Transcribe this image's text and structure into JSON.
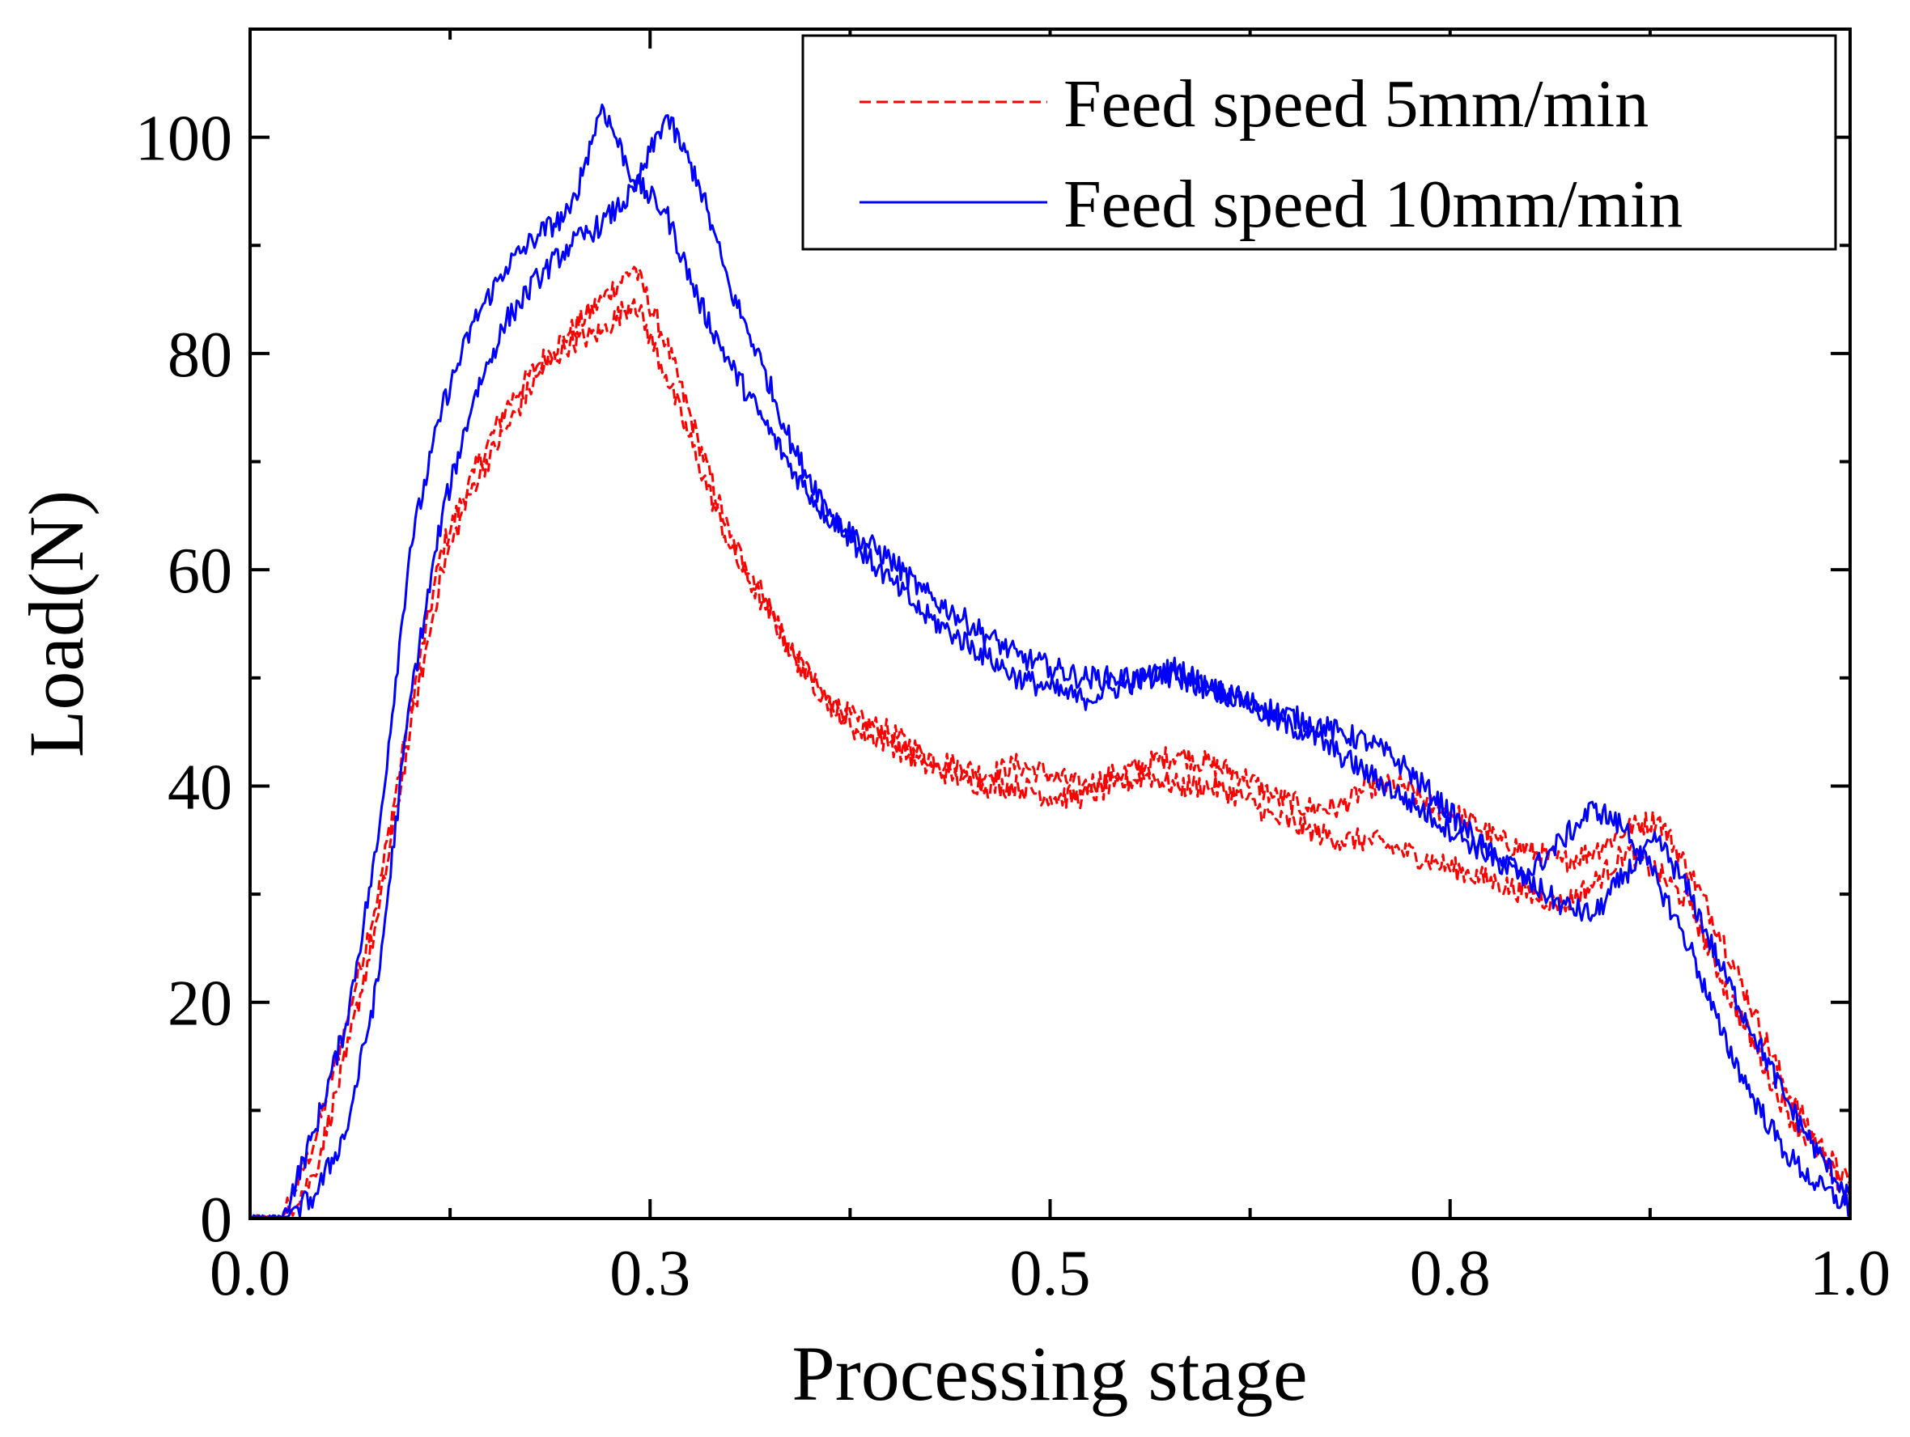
{
  "chart_data": {
    "type": "line",
    "title": "",
    "xlabel": "Processing stage",
    "ylabel": "Load(N)",
    "xlim": [
      0.0,
      1.0
    ],
    "ylim": [
      0,
      110
    ],
    "grid": false,
    "legend_position": "top-right",
    "x_ticks": [
      {
        "value": 0.0,
        "label": "0.0"
      },
      {
        "value": 0.25,
        "label": "0.3"
      },
      {
        "value": 0.5,
        "label": "0.5"
      },
      {
        "value": 0.75,
        "label": "0.8"
      },
      {
        "value": 1.0,
        "label": "1.0"
      }
    ],
    "y_ticks": [
      {
        "value": 0,
        "label": "0"
      },
      {
        "value": 20,
        "label": "20"
      },
      {
        "value": 40,
        "label": "40"
      },
      {
        "value": 60,
        "label": "60"
      },
      {
        "value": 80,
        "label": "80"
      },
      {
        "value": 100,
        "label": "100"
      }
    ],
    "series": [
      {
        "name": "Feed speed 5mm/min",
        "color": "#ff0000",
        "dash": "dashed",
        "curves": [
          {
            "x": [
              0.0,
              0.02,
              0.04,
              0.06,
              0.08,
              0.1,
              0.12,
              0.14,
              0.16,
              0.18,
              0.2,
              0.22,
              0.24,
              0.26,
              0.28,
              0.3,
              0.32,
              0.34,
              0.36,
              0.38,
              0.4,
              0.42,
              0.44,
              0.46,
              0.48,
              0.5,
              0.52,
              0.54,
              0.56,
              0.58,
              0.6,
              0.62,
              0.64,
              0.66,
              0.68,
              0.7,
              0.72,
              0.74,
              0.76,
              0.78,
              0.8,
              0.82,
              0.84,
              0.86,
              0.88,
              0.9,
              0.92,
              0.94,
              0.96,
              0.98,
              1.0
            ],
            "y": [
              0,
              0,
              7,
              18,
              30,
              47,
              62,
              69,
              75,
              79,
              82,
              85,
              88,
              81,
              72,
              63,
              58,
              52,
              48,
              46,
              45,
              43,
              42,
              41,
              42,
              41,
              40,
              41,
              42,
              43,
              42,
              41,
              39,
              38,
              38,
              40,
              40,
              38,
              37,
              35,
              34,
              33,
              34,
              36,
              37,
              32,
              26,
              19,
              12,
              7,
              3
            ]
          },
          {
            "x": [
              0.0,
              0.02,
              0.04,
              0.06,
              0.08,
              0.1,
              0.12,
              0.14,
              0.16,
              0.18,
              0.2,
              0.22,
              0.24,
              0.26,
              0.28,
              0.3,
              0.32,
              0.34,
              0.36,
              0.38,
              0.4,
              0.42,
              0.44,
              0.46,
              0.48,
              0.5,
              0.52,
              0.54,
              0.56,
              0.58,
              0.6,
              0.62,
              0.64,
              0.66,
              0.68,
              0.7,
              0.72,
              0.74,
              0.76,
              0.78,
              0.8,
              0.82,
              0.84,
              0.86,
              0.88,
              0.9,
              0.92,
              0.94,
              0.96,
              0.98,
              1.0
            ],
            "y": [
              0,
              0,
              4,
              15,
              28,
              45,
              60,
              68,
              73,
              78,
              81,
              82,
              85,
              78,
              70,
              62,
              57,
              52,
              48,
              45,
              44,
              42,
              41,
              40,
              40,
              39,
              39,
              40,
              41,
              40,
              40,
              39,
              37,
              36,
              35,
              35,
              34,
              33,
              32,
              31,
              30,
              29,
              31,
              34,
              32,
              29,
              22,
              16,
              10,
              6,
              2
            ]
          }
        ]
      },
      {
        "name": "Feed speed 10mm/min",
        "color": "#0000ff",
        "dash": "solid",
        "curves": [
          {
            "x": [
              0.0,
              0.02,
              0.04,
              0.06,
              0.08,
              0.1,
              0.12,
              0.14,
              0.16,
              0.18,
              0.2,
              0.22,
              0.24,
              0.26,
              0.28,
              0.3,
              0.32,
              0.34,
              0.36,
              0.38,
              0.4,
              0.42,
              0.44,
              0.46,
              0.48,
              0.5,
              0.52,
              0.54,
              0.56,
              0.58,
              0.6,
              0.62,
              0.64,
              0.66,
              0.68,
              0.7,
              0.72,
              0.74,
              0.76,
              0.78,
              0.8,
              0.82,
              0.84,
              0.86,
              0.88,
              0.9,
              0.92,
              0.94,
              0.96,
              0.98,
              1.0
            ],
            "y": [
              0,
              0,
              8,
              18,
              35,
              62,
              75,
              83,
              88,
              91,
              93,
              103,
              96,
              93,
              85,
              79,
              74,
              69,
              65,
              63,
              61,
              58,
              56,
              54,
              52,
              51,
              50,
              50,
              50,
              50,
              49,
              48,
              47,
              46,
              45,
              44,
              42,
              39,
              36,
              33,
              31,
              29,
              28,
              32,
              35,
              30,
              23,
              17,
              11,
              6,
              2
            ]
          },
          {
            "x": [
              0.0,
              0.02,
              0.04,
              0.06,
              0.08,
              0.1,
              0.12,
              0.14,
              0.16,
              0.18,
              0.2,
              0.22,
              0.24,
              0.26,
              0.28,
              0.3,
              0.32,
              0.34,
              0.36,
              0.38,
              0.4,
              0.42,
              0.44,
              0.46,
              0.48,
              0.5,
              0.52,
              0.54,
              0.56,
              0.58,
              0.6,
              0.62,
              0.64,
              0.66,
              0.68,
              0.7,
              0.72,
              0.74,
              0.76,
              0.78,
              0.8,
              0.82,
              0.84,
              0.86,
              0.88,
              0.9,
              0.92,
              0.94,
              0.96,
              0.98,
              1.0
            ],
            "y": [
              0,
              0,
              2,
              8,
              22,
              48,
              65,
              76,
              83,
              87,
              90,
              92,
              95,
              102,
              96,
              86,
              79,
              71,
              66,
              62,
              59,
              56,
              54,
              52,
              50,
              49,
              48,
              49,
              50,
              51,
              49,
              48,
              46,
              45,
              43,
              41,
              39,
              37,
              35,
              33,
              32,
              35,
              38,
              36,
              31,
              25,
              17,
              11,
              6,
              3,
              1
            ]
          }
        ]
      }
    ]
  }
}
